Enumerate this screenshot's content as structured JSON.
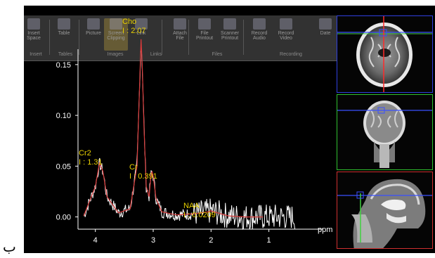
{
  "ribbon": {
    "buttons": [
      {
        "label": "Insert\nSpace",
        "icon": "insert-space-icon"
      },
      {
        "label": "Table",
        "icon": "table-icon"
      },
      {
        "label": "Picture",
        "icon": "picture-icon"
      },
      {
        "label": "Screen\nClipping",
        "icon": "screen-clipping-icon"
      },
      {
        "label": "Link",
        "icon": "link-icon"
      },
      {
        "label": "Attach\nFile",
        "icon": "attach-file-icon"
      },
      {
        "label": "File\nPrintout",
        "icon": "file-printout-icon"
      },
      {
        "label": "Scanner\nPrintout",
        "icon": "scanner-printout-icon"
      },
      {
        "label": "Record\nAudio",
        "icon": "record-audio-icon"
      },
      {
        "label": "Record\nVideo",
        "icon": "record-video-icon"
      },
      {
        "label": "Date",
        "icon": "date-icon"
      }
    ],
    "groups": [
      "Insert",
      "Tables",
      "Images",
      "Links",
      "Files",
      "Recording"
    ]
  },
  "spectrum": {
    "x_unit": "ppm",
    "peaks": [
      {
        "name": "Cho",
        "value": "I : 2.07"
      },
      {
        "name": "Cr2",
        "value": "I : 1.31"
      },
      {
        "name": "Cr",
        "value": "I : 0.391"
      },
      {
        "name": "NAA",
        "value": "I : 0.0209"
      }
    ]
  },
  "chart_data": {
    "type": "line",
    "xlabel": "ppm",
    "ylabel": "",
    "x_ticks": [
      "4",
      "3",
      "2",
      "1"
    ],
    "y_ticks": [
      "0.00",
      "0.05",
      "0.10",
      "0.15"
    ],
    "xlim": [
      4.3,
      0.4
    ],
    "ylim": [
      -0.01,
      0.17
    ],
    "annotations": [
      {
        "label": "Cho",
        "value": "I : 2.07",
        "ppm": 3.2
      },
      {
        "label": "Cr2",
        "value": "I : 1.31",
        "ppm": 3.9
      },
      {
        "label": "Cr",
        "value": "I : 0.391",
        "ppm": 3.03
      },
      {
        "label": "NAA",
        "value": "I : 0.0209",
        "ppm": 2.0
      }
    ],
    "series": [
      {
        "x": [
          4.2,
          4.0,
          3.93,
          3.87,
          3.8,
          3.6,
          3.4,
          3.28,
          3.24,
          3.21,
          3.19,
          3.16,
          3.12,
          3.07,
          3.04,
          3.02,
          3.0,
          2.95,
          2.85,
          2.6,
          2.3,
          2.05,
          2.0,
          1.95,
          1.7,
          1.4,
          1.1
        ],
        "y": [
          0.001,
          0.03,
          0.053,
          0.045,
          0.02,
          0.004,
          0.008,
          0.05,
          0.12,
          0.175,
          0.15,
          0.09,
          0.03,
          0.02,
          0.04,
          0.045,
          0.04,
          0.018,
          0.005,
          0.002,
          0.003,
          0.005,
          0.006,
          0.005,
          0.001,
          0.0,
          0.0
        ]
      }
    ]
  },
  "colors": {
    "fit_line": "#d83a3a",
    "raw_line": "#ffffff",
    "peak_label": "#e8d000",
    "panel_axial": "#3040e0",
    "panel_coronal": "#2fc02f",
    "panel_sagittal": "#d03030",
    "cross_red": "#ff2a2a",
    "cross_blue": "#3a50ff",
    "cross_green": "#40d040"
  },
  "footer": {
    "char": "ب"
  }
}
